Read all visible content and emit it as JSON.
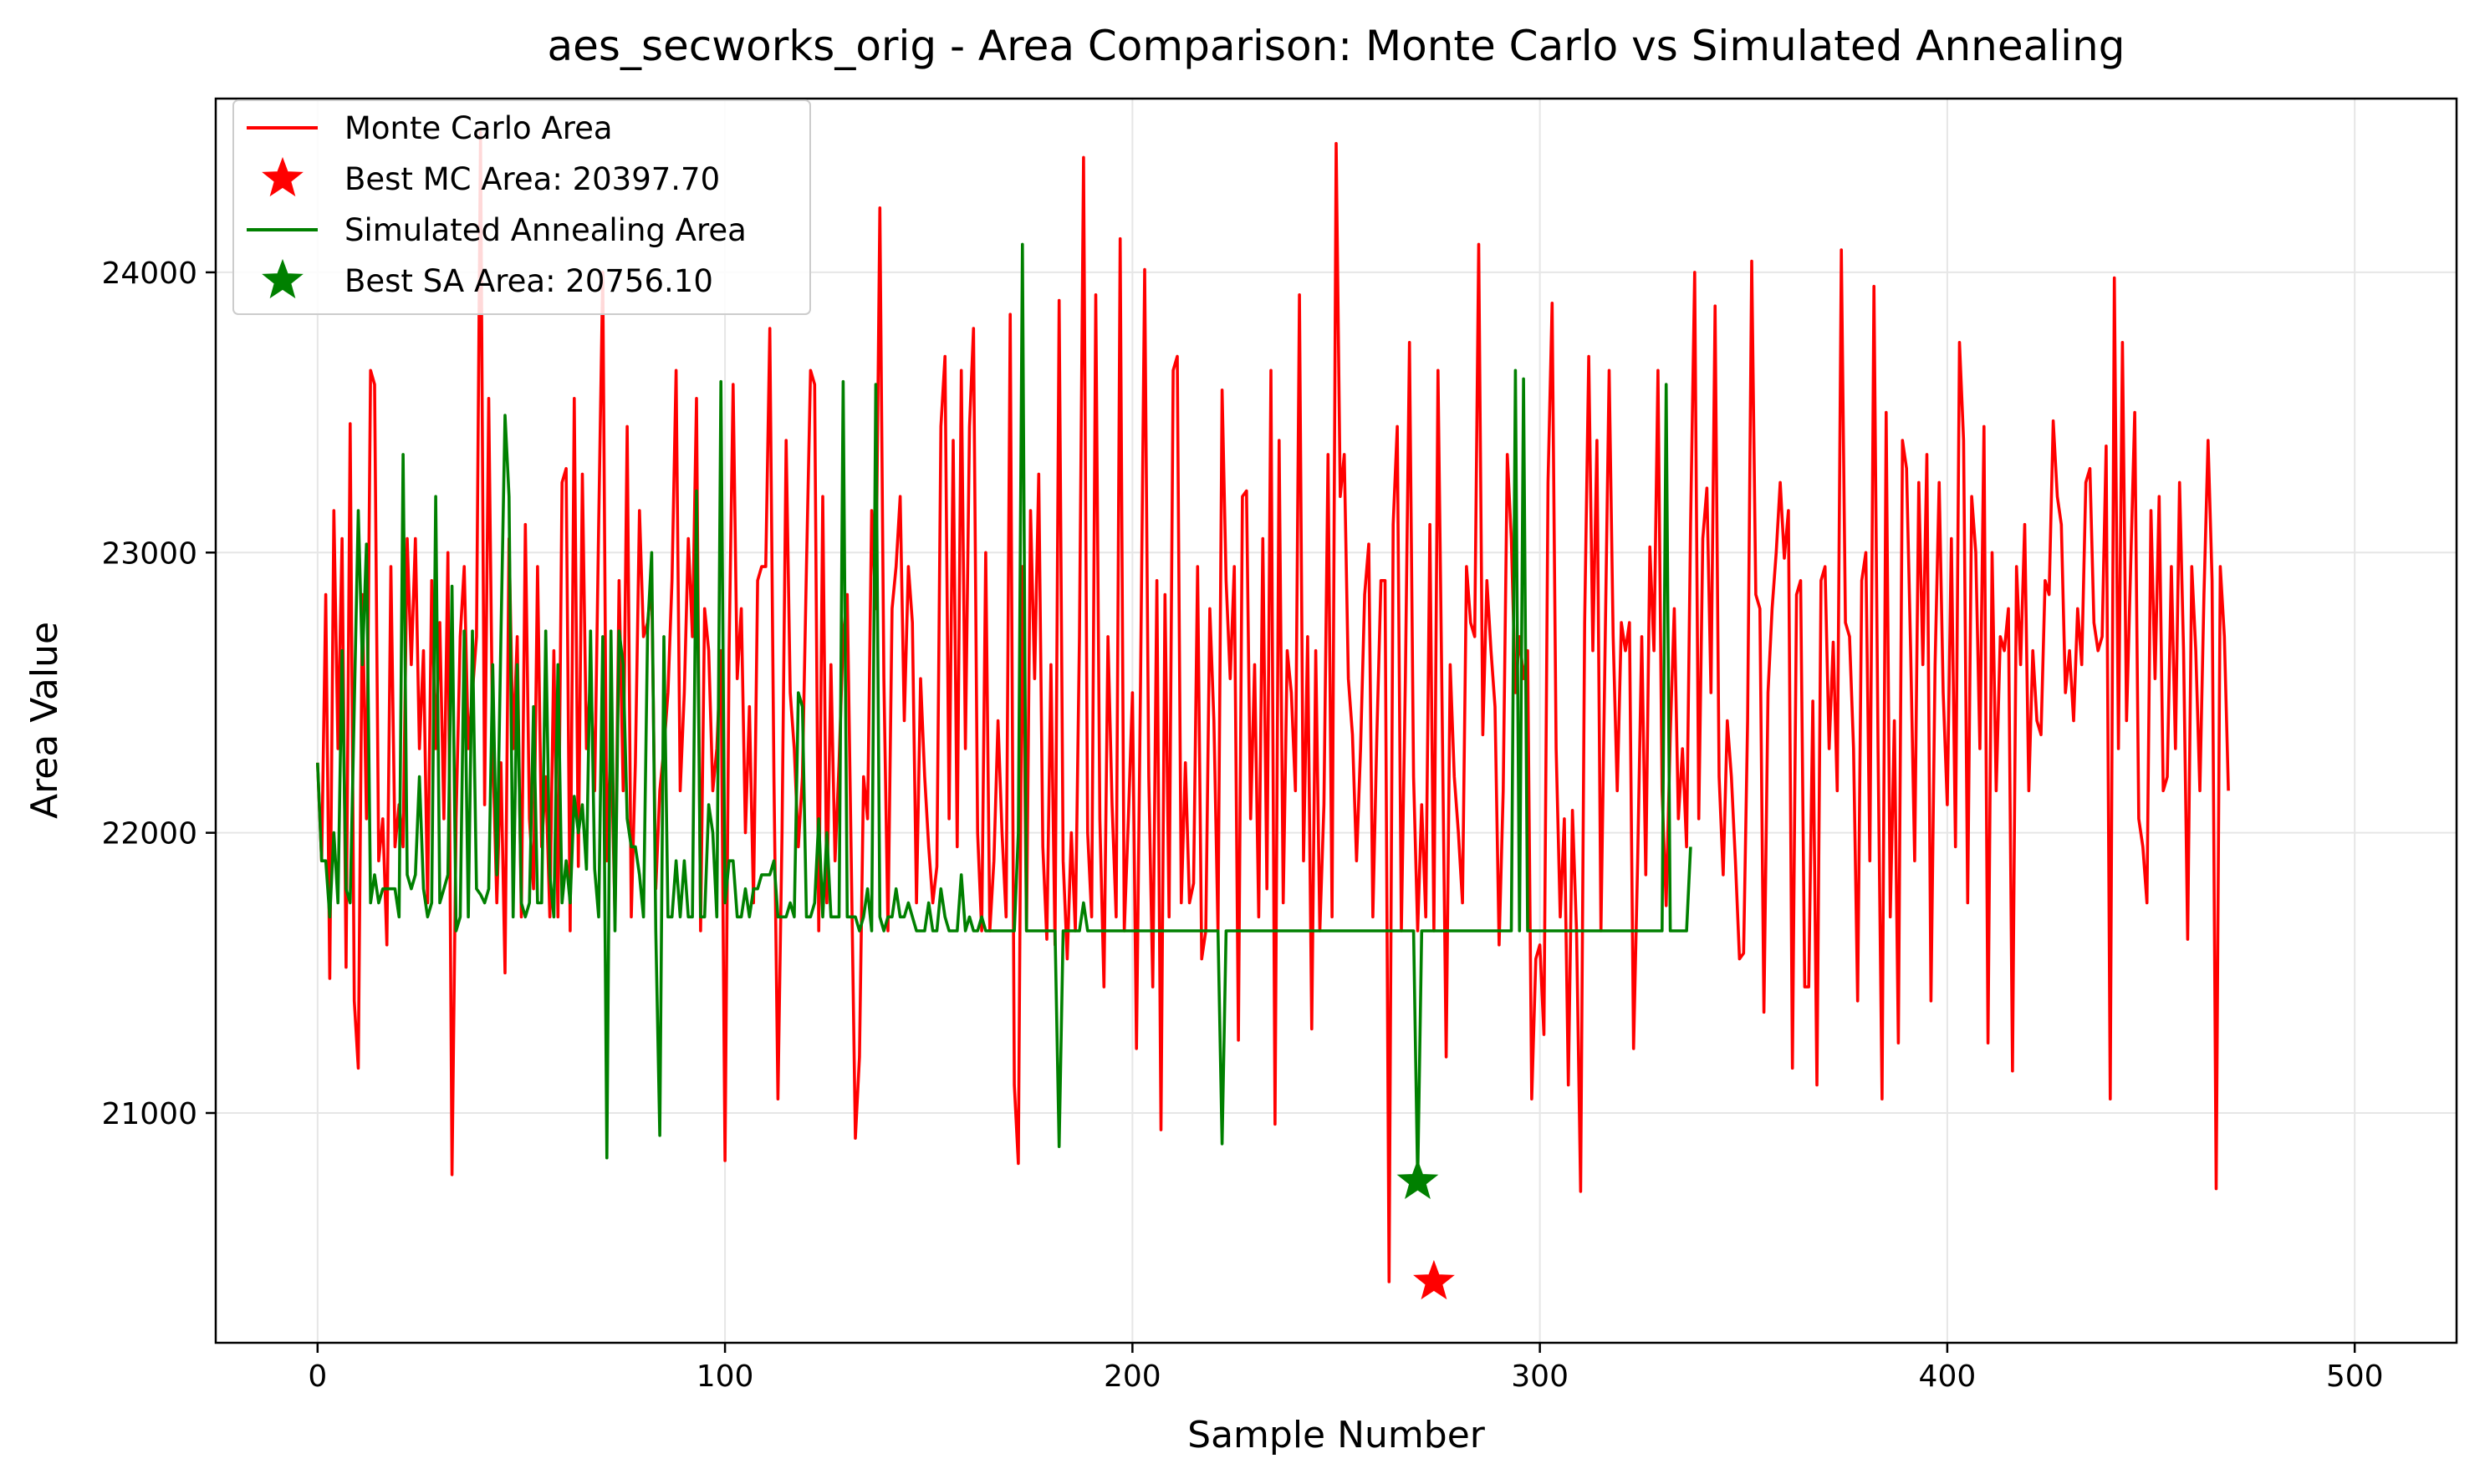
{
  "chart_data": {
    "type": "line",
    "title": "aes_secworks_orig - Area Comparison: Monte Carlo vs Simulated Annealing",
    "xlabel": "Sample Number",
    "ylabel": "Area Value",
    "xlim": [
      -25,
      525
    ],
    "ylim": [
      20180,
      24620
    ],
    "xticks": [
      0,
      100,
      200,
      300,
      400,
      500
    ],
    "yticks": [
      21000,
      22000,
      23000,
      24000
    ],
    "xtick_labels": [
      "0",
      "100",
      "200",
      "300",
      "400",
      "500"
    ],
    "ytick_labels": [
      "21000",
      "22000",
      "23000",
      "24000"
    ],
    "grid": true,
    "legend_position": "top-left",
    "legend": [
      {
        "label": "Monte Carlo Area",
        "kind": "line",
        "color": "#ff0000"
      },
      {
        "label": "Best MC Area: 20397.70",
        "kind": "star",
        "color": "#ff0000"
      },
      {
        "label": "Simulated Annealing Area",
        "kind": "line",
        "color": "#008000"
      },
      {
        "label": "Best SA Area: 20756.10",
        "kind": "star",
        "color": "#008000"
      }
    ],
    "series": [
      {
        "name": "Monte Carlo Area",
        "color": "#ff0000",
        "x_start": 0,
        "values": [
          22250,
          21900,
          22850,
          21480,
          23150,
          22300,
          23050,
          21520,
          23460,
          21400,
          21160,
          22850,
          22050,
          23650,
          23600,
          21900,
          22050,
          21600,
          22950,
          21950,
          22100,
          21950,
          23050,
          22600,
          23050,
          22300,
          22650,
          21750,
          22900,
          22300,
          22750,
          22050,
          23000,
          20780,
          22050,
          22700,
          22950,
          22300,
          22500,
          22700,
          24500,
          22100,
          23550,
          22300,
          21750,
          22250,
          21500,
          23050,
          22300,
          22700,
          21700,
          23100,
          22050,
          21800,
          22950,
          21950,
          22200,
          21700,
          22650,
          21700,
          23250,
          23300,
          21650,
          23550,
          21880,
          23280,
          22300,
          22550,
          22150,
          23100,
          24000,
          21900,
          22350,
          21700,
          22900,
          22150,
          23450,
          21700,
          22250,
          23150,
          22700,
          22750,
          22900,
          21800,
          22150,
          22300,
          22500,
          22900,
          23650,
          22150,
          22500,
          23050,
          22700,
          23550,
          21650,
          22800,
          22650,
          22150,
          22300,
          22650,
          20830,
          22650,
          23600,
          22550,
          22800,
          22000,
          22450,
          21750,
          22900,
          22950,
          22950,
          23800,
          22200,
          21050,
          22000,
          23400,
          22500,
          22300,
          21950,
          22200,
          22950,
          23650,
          23600,
          21650,
          23200,
          21750,
          22600,
          21900,
          22250,
          22700,
          22850,
          21900,
          20910,
          21200,
          22200,
          22050,
          23150,
          22800,
          24230,
          22550,
          21650,
          22800,
          22950,
          23200,
          22400,
          22950,
          22750,
          21750,
          22550,
          22200,
          21950,
          21750,
          21880,
          23450,
          23700,
          22050,
          23400,
          21950,
          23650,
          22300,
          23450,
          23800,
          22000,
          21650,
          23000,
          21650,
          21900,
          22400,
          22000,
          21700,
          23850,
          21100,
          20820,
          22950,
          21650,
          23150,
          22550,
          23280,
          21950,
          21620,
          22600,
          21600,
          23900,
          21900,
          21550,
          22000,
          21650,
          22700,
          24410,
          22000,
          21700,
          23920,
          22050,
          21450,
          22700,
          22100,
          21700,
          24120,
          21650,
          22050,
          22500,
          21230,
          22550,
          24010,
          22200,
          21450,
          22900,
          20940,
          22850,
          21700,
          23650,
          23700,
          21750,
          22250,
          21750,
          21820,
          22950,
          21550,
          21650,
          22800,
          22400,
          21650,
          23580,
          22900,
          22550,
          22950,
          21260,
          23200,
          23220,
          22050,
          22600,
          21700,
          23050,
          21800,
          23650,
          20960,
          23400,
          21750,
          22650,
          22500,
          22150,
          23920,
          21900,
          22700,
          21300,
          22650,
          21650,
          22100,
          23350,
          21700,
          24460,
          23200,
          23350,
          22550,
          22350,
          21900,
          22300,
          22850,
          23030,
          21700,
          22350,
          22900,
          22900,
          20397.7,
          23100,
          23450,
          21650,
          22550,
          23750,
          22200,
          21650,
          22100,
          21700,
          23100,
          21650,
          23650,
          22450,
          21200,
          22600,
          22200,
          22000,
          21750,
          22950,
          22750,
          22700,
          24100,
          22350,
          22900,
          22650,
          22450,
          21600,
          22150,
          23350,
          23050,
          22500,
          22700,
          22550,
          22650,
          21050,
          21550,
          21600,
          21280,
          23250,
          23890,
          22300,
          21700,
          22050,
          21100,
          22080,
          21650,
          20720,
          22750,
          23700,
          22650,
          23400,
          21650,
          22650,
          23650,
          22700,
          22150,
          22750,
          22650,
          22750,
          21230,
          21900,
          22700,
          21850,
          23020,
          22650,
          23650,
          22150,
          21740,
          22350,
          22800,
          22050,
          22300,
          21950,
          23100,
          24000,
          22050,
          23050,
          23230,
          22500,
          23880,
          22200,
          21850,
          22400,
          22200,
          21900,
          21550,
          21570,
          22400,
          24040,
          22850,
          22800,
          21360,
          22500,
          22800,
          23000,
          23250,
          22980,
          23150,
          21160,
          22850,
          22900,
          21450,
          21450,
          22470,
          21100,
          22900,
          22950,
          22300,
          22680,
          22150,
          24080,
          22750,
          22700,
          22300,
          21400,
          22900,
          23000,
          21900,
          23950,
          22300,
          21050,
          23500,
          21700,
          22400,
          21250,
          23400,
          23300,
          22650,
          21900,
          23250,
          22600,
          23350,
          21400,
          22600,
          23250,
          22500,
          22100,
          23050,
          21950,
          23750,
          23400,
          21750,
          23200,
          23000,
          22300,
          23450,
          21250,
          23000,
          22150,
          22700,
          22650,
          22800,
          21150,
          22950,
          22600,
          23100,
          22150,
          22650,
          22400,
          22350,
          22900,
          22850,
          23470,
          23200,
          23100,
          22500,
          22650,
          22400,
          22800,
          22600,
          23250,
          23300,
          22750,
          22650,
          22700,
          23380,
          21050,
          23980,
          22300,
          23750,
          22400,
          22950,
          23500,
          22050,
          21950,
          21750,
          23150,
          22550,
          23200,
          22150,
          22200,
          22950,
          22300,
          23250,
          22650,
          21620,
          22950,
          22650,
          22150,
          22850,
          23400,
          22900,
          20730,
          22950,
          22700,
          22150
        ]
      },
      {
        "name": "Simulated Annealing Area",
        "color": "#008000",
        "x_start": 0,
        "values": [
          22250,
          21900,
          21900,
          21700,
          22000,
          21750,
          22650,
          21800,
          21750,
          22450,
          23150,
          22600,
          23030,
          21750,
          21850,
          21750,
          21800,
          21800,
          21800,
          21800,
          21700,
          23350,
          21850,
          21800,
          21850,
          22200,
          21800,
          21700,
          21750,
          23200,
          21750,
          21800,
          21850,
          22880,
          21650,
          21700,
          22720,
          21700,
          22720,
          21800,
          21780,
          21750,
          21800,
          22600,
          21850,
          22700,
          23490,
          23200,
          21700,
          22600,
          21750,
          21700,
          21750,
          22450,
          21750,
          21750,
          22720,
          21850,
          21700,
          22600,
          21750,
          21900,
          21750,
          22130,
          22000,
          22100,
          21870,
          22720,
          21870,
          21700,
          22700,
          20840,
          22720,
          21650,
          22720,
          22600,
          22050,
          21950,
          21950,
          21850,
          21700,
          22720,
          23000,
          21650,
          20920,
          22700,
          21700,
          21700,
          21900,
          21700,
          21900,
          21700,
          21700,
          23220,
          21700,
          21700,
          22100,
          22000,
          21700,
          23610,
          21750,
          21900,
          21900,
          21700,
          21700,
          21800,
          21700,
          21800,
          21800,
          21850,
          21850,
          21850,
          21900,
          21700,
          21700,
          21700,
          21750,
          21700,
          22500,
          22450,
          21700,
          21700,
          21750,
          22050,
          21700,
          22000,
          21700,
          21700,
          21700,
          23610,
          21700,
          21700,
          21700,
          21650,
          21700,
          21800,
          21650,
          23600,
          21700,
          21650,
          21700,
          21700,
          21800,
          21700,
          21700,
          21750,
          21700,
          21650,
          21650,
          21650,
          21750,
          21650,
          21650,
          21800,
          21700,
          21650,
          21650,
          21650,
          21850,
          21650,
          21700,
          21650,
          21650,
          21700,
          21650,
          21650,
          21650,
          21650,
          21650,
          21650,
          21650,
          21650,
          22000,
          24100,
          21650,
          21650,
          21650,
          21650,
          21650,
          21650,
          21650,
          21650,
          20880,
          21650,
          21650,
          21650,
          21650,
          21650,
          21750,
          21650,
          21650,
          21650,
          21650,
          21650,
          21650,
          21650,
          21650,
          21650,
          21650,
          21650,
          21650,
          21650,
          21650,
          21650,
          21650,
          21650,
          21650,
          21650,
          21650,
          21650,
          21650,
          21650,
          21650,
          21650,
          21650,
          21650,
          21650,
          21650,
          21650,
          21650,
          21650,
          21650,
          20890,
          21650,
          21650,
          21650,
          21650,
          21650,
          21650,
          21650,
          21650,
          21650,
          21650,
          21650,
          21650,
          21650,
          21650,
          21650,
          21650,
          21650,
          21650,
          21650,
          21650,
          21650,
          21650,
          21650,
          21650,
          21650,
          21650,
          21650,
          21650,
          21650,
          21650,
          21650,
          21650,
          21650,
          21650,
          21650,
          21650,
          21650,
          21650,
          21650,
          21650,
          21650,
          21650,
          21650,
          21650,
          21650,
          21650,
          21650,
          20756.1,
          21650,
          21650,
          21650,
          21650,
          21650,
          21650,
          21650,
          21650,
          21650,
          21650,
          21650,
          21650,
          21650,
          21650,
          21650,
          21650,
          21650,
          21650,
          21650,
          21650,
          21650,
          21650,
          21650,
          23650,
          21650,
          23620,
          21650,
          21650,
          21650,
          21650,
          21650,
          21650,
          21650,
          21650,
          21650,
          21650,
          21650,
          21650,
          21650,
          21650,
          21650,
          21650,
          21650,
          21650,
          21650,
          21650,
          21650,
          21650,
          21650,
          21650,
          21650,
          21650,
          21650,
          21650,
          21650,
          21650,
          21650,
          21650,
          21650,
          21650,
          23600,
          21650,
          21650,
          21650,
          21650,
          21650,
          21950
        ]
      }
    ],
    "best_points": [
      {
        "label": "Best MC Area: 20397.70",
        "x": 274,
        "y": 20397.7,
        "color": "#ff0000"
      },
      {
        "label": "Best SA Area: 20756.10",
        "x": 270,
        "y": 20756.1,
        "color": "#008000"
      }
    ]
  }
}
